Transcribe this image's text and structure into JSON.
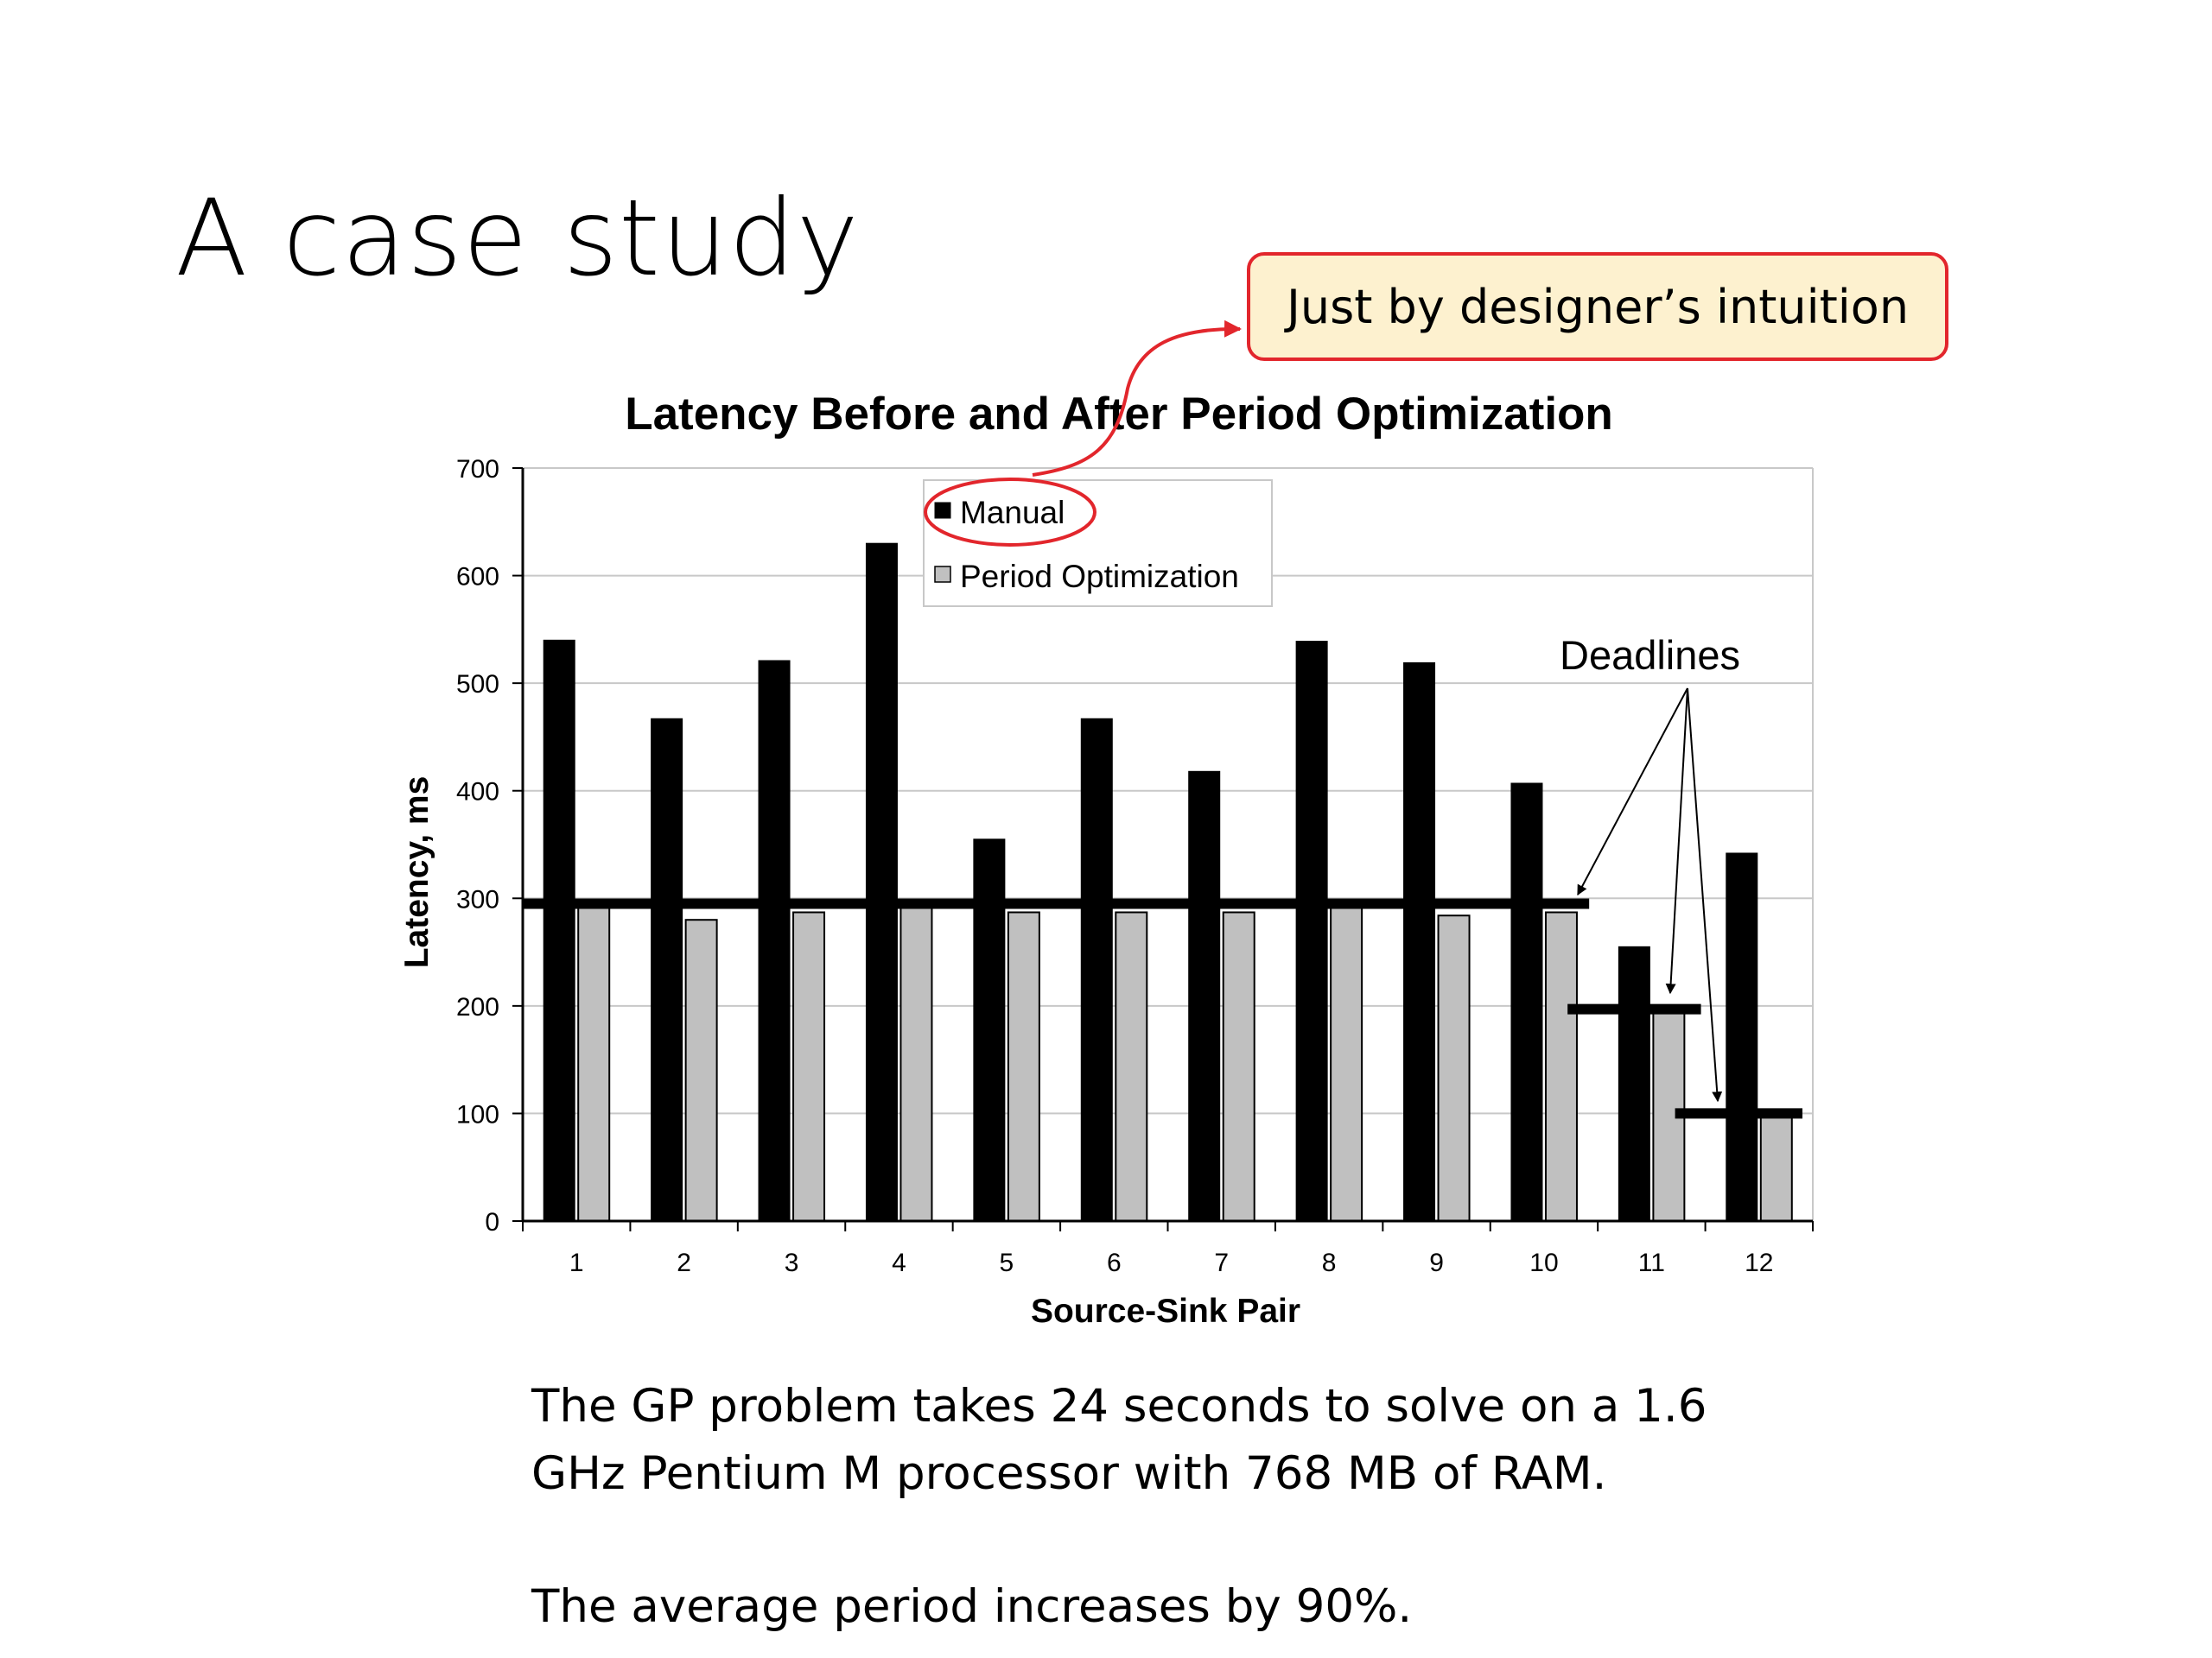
{
  "slide": {
    "title": "A case study",
    "callout": "Just by designer’s intuition",
    "body_lines": [
      "The GP problem takes 24 seconds to solve on a 1.6",
      "GHz Pentium M processor with 768 MB of RAM.",
      "The average period increases by 90%."
    ]
  },
  "colors": {
    "manual": "#000000",
    "period_optimization": "#c0c0c0",
    "callout_border": "#e2262c",
    "callout_fill": "#fdf1cf",
    "annotation_red": "#e2262c"
  },
  "chart_data": {
    "type": "bar",
    "title": "Latency Before and After Period Optimization",
    "xlabel": "Source-Sink Pair",
    "ylabel": "Latency, ms",
    "ylim": [
      0,
      700
    ],
    "yticks": [
      0,
      100,
      200,
      300,
      400,
      500,
      600,
      700
    ],
    "grid": true,
    "legend_position": "top-center",
    "categories": [
      "1",
      "2",
      "3",
      "4",
      "5",
      "6",
      "7",
      "8",
      "9",
      "10",
      "11",
      "12"
    ],
    "series": [
      {
        "name": "Manual",
        "values": [
          540,
          467,
          521,
          630,
          355,
          467,
          418,
          539,
          519,
          407,
          255,
          342
        ]
      },
      {
        "name": "Period Optimization",
        "values": [
          293,
          280,
          287,
          291,
          287,
          287,
          287,
          291,
          284,
          287,
          195,
          99
        ]
      }
    ],
    "deadlines": [
      {
        "from_category": "1",
        "to_category": "10",
        "value": 295
      },
      {
        "from_category": "11",
        "to_category": "11",
        "value": 197
      },
      {
        "from_category": "12",
        "to_category": "12",
        "value": 100
      }
    ],
    "annotation": "Deadlines"
  }
}
